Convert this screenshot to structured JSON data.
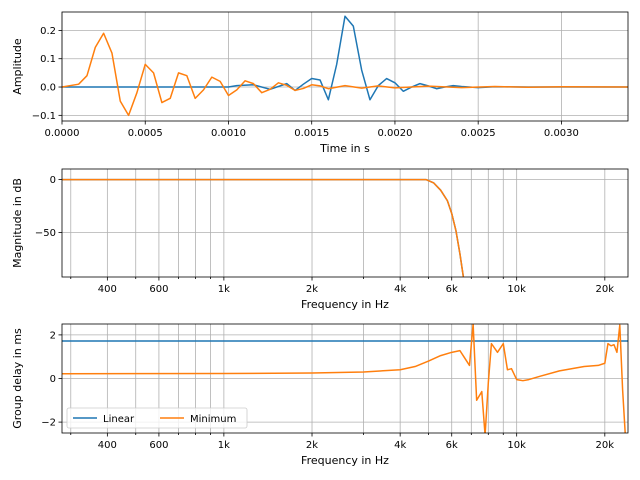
{
  "chart_data": [
    {
      "type": "line",
      "xlabel": "Time in s",
      "ylabel": "Amplitude",
      "xlim": [
        0,
        0.0034
      ],
      "ylim": [
        -0.12,
        0.265
      ],
      "xscale": "linear",
      "grid": true,
      "xticks": [
        0,
        0.0005,
        0.001,
        0.0015,
        0.002,
        0.0025,
        0.003
      ],
      "xtick_labels": [
        "0.0000",
        "0.0005",
        "0.0010",
        "0.0015",
        "0.0020",
        "0.0025",
        "0.0030"
      ],
      "yticks": [
        -0.1,
        0,
        0.1,
        0.2
      ],
      "ytick_labels": [
        "−0.1",
        "0.0",
        "0.1",
        "0.2"
      ],
      "series": [
        {
          "name": "Linear",
          "color": "#1f77b4",
          "x": [
            0,
            0.0002,
            0.0004,
            0.0006,
            0.0008,
            0.001,
            0.00105,
            0.00115,
            0.00125,
            0.00135,
            0.0014,
            0.00145,
            0.0015,
            0.00155,
            0.0016,
            0.00165,
            0.0017,
            0.00175,
            0.0018,
            0.00185,
            0.0019,
            0.00195,
            0.002,
            0.00205,
            0.0021,
            0.00215,
            0.0022,
            0.00225,
            0.0023,
            0.00235,
            0.0024,
            0.0025,
            0.0026,
            0.0028,
            0.003,
            0.0032,
            0.0034
          ],
          "y": [
            0,
            0,
            0,
            0,
            0,
            0,
            0.005,
            0.008,
            -0.008,
            0.012,
            -0.012,
            0.01,
            0.03,
            0.025,
            -0.045,
            0.08,
            0.25,
            0.215,
            0.06,
            -0.045,
            0.005,
            0.03,
            0.015,
            -0.015,
            0.0,
            0.012,
            0.004,
            -0.006,
            0.0,
            0.005,
            0.002,
            -0.002,
            0.001,
            0,
            0,
            0,
            0
          ]
        },
        {
          "name": "Minimum",
          "color": "#ff7f0e",
          "x": [
            0,
            0.0001,
            0.00015,
            0.0002,
            0.00025,
            0.0003,
            0.00035,
            0.0004,
            0.00045,
            0.0005,
            0.00055,
            0.0006,
            0.00065,
            0.0007,
            0.00075,
            0.0008,
            0.00085,
            0.0009,
            0.00095,
            0.001,
            0.00105,
            0.0011,
            0.00115,
            0.0012,
            0.00125,
            0.0013,
            0.00135,
            0.0014,
            0.00145,
            0.0015,
            0.00155,
            0.0016,
            0.0017,
            0.0018,
            0.0019,
            0.002,
            0.0022,
            0.0024,
            0.0026,
            0.0028,
            0.003,
            0.0034
          ],
          "y": [
            0,
            0.01,
            0.04,
            0.14,
            0.19,
            0.12,
            -0.05,
            -0.1,
            -0.02,
            0.08,
            0.05,
            -0.055,
            -0.04,
            0.05,
            0.04,
            -0.04,
            -0.01,
            0.035,
            0.02,
            -0.03,
            -0.01,
            0.022,
            0.012,
            -0.02,
            -0.008,
            0.015,
            0.006,
            -0.012,
            -0.005,
            0.008,
            0.004,
            -0.006,
            0.005,
            -0.004,
            0.004,
            -0.003,
            0.003,
            -0.002,
            0.002,
            -0.001,
            0.001,
            0
          ]
        }
      ]
    },
    {
      "type": "line",
      "xlabel": "Frequency in Hz",
      "ylabel": "Magnitude in dB",
      "xlim": [
        280,
        24000
      ],
      "ylim": [
        -92,
        10
      ],
      "xscale": "log",
      "grid": true,
      "xticks": [
        400,
        600,
        1000,
        2000,
        4000,
        6000,
        10000,
        20000
      ],
      "xtick_labels": [
        "400",
        "600",
        "1k",
        "2k",
        "4k",
        "6k",
        "10k",
        "20k"
      ],
      "xminor_ticks": [
        300,
        500,
        700,
        800,
        900,
        3000,
        5000,
        7000,
        8000,
        9000
      ],
      "yticks": [
        -50,
        0
      ],
      "ytick_labels": [
        "−50",
        "0"
      ],
      "series": [
        {
          "name": "Linear",
          "color": "#1f77b4",
          "x": [
            280,
            1000,
            4000,
            4900,
            5200,
            5500,
            5800,
            6000,
            6200,
            6400,
            6600
          ],
          "y": [
            0,
            0,
            0,
            0,
            -3,
            -10,
            -20,
            -32,
            -48,
            -70,
            -95
          ]
        },
        {
          "name": "Minimum",
          "color": "#ff7f0e",
          "x": [
            280,
            1000,
            4000,
            4900,
            5200,
            5500,
            5800,
            6000,
            6200,
            6400,
            6600
          ],
          "y": [
            0,
            0,
            0,
            0,
            -3,
            -10,
            -20,
            -32,
            -48,
            -70,
            -95
          ]
        }
      ]
    },
    {
      "type": "line",
      "xlabel": "Frequency in Hz",
      "ylabel": "Group delay in ms",
      "xlim": [
        280,
        24000
      ],
      "ylim": [
        -2.5,
        2.5
      ],
      "xscale": "log",
      "grid": true,
      "legend": "lower-left",
      "legend_columns": 2,
      "xticks": [
        400,
        600,
        1000,
        2000,
        4000,
        6000,
        10000,
        20000
      ],
      "xtick_labels": [
        "400",
        "600",
        "1k",
        "2k",
        "4k",
        "6k",
        "10k",
        "20k"
      ],
      "xminor_ticks": [
        300,
        500,
        700,
        800,
        900,
        3000,
        5000,
        7000,
        8000,
        9000
      ],
      "yticks": [
        -2,
        0,
        2
      ],
      "ytick_labels": [
        "−2",
        "0",
        "2"
      ],
      "series": [
        {
          "name": "Linear",
          "color": "#1f77b4",
          "x": [
            280,
            24000
          ],
          "y": [
            1.72,
            1.72
          ]
        },
        {
          "name": "Minimum",
          "color": "#ff7f0e",
          "x": [
            280,
            1000,
            2000,
            3000,
            4000,
            4500,
            5000,
            5500,
            6000,
            6400,
            6600,
            6900,
            7100,
            7300,
            7600,
            7800,
            8000,
            8200,
            8600,
            9000,
            9300,
            9600,
            10000,
            10500,
            11000,
            12000,
            14000,
            17000,
            19000,
            20000,
            20500,
            21000,
            21500,
            22000,
            22500,
            23000,
            23500
          ],
          "y": [
            0.22,
            0.23,
            0.25,
            0.3,
            0.4,
            0.55,
            0.8,
            1.05,
            1.2,
            1.28,
            1.0,
            0.6,
            2.5,
            -1.0,
            -0.6,
            -2.6,
            -0.2,
            1.6,
            1.2,
            1.6,
            0.4,
            0.45,
            -0.05,
            -0.1,
            -0.05,
            0.1,
            0.35,
            0.55,
            0.6,
            0.7,
            1.6,
            1.5,
            1.55,
            1.2,
            2.45,
            -0.5,
            -2.6
          ]
        }
      ]
    }
  ]
}
